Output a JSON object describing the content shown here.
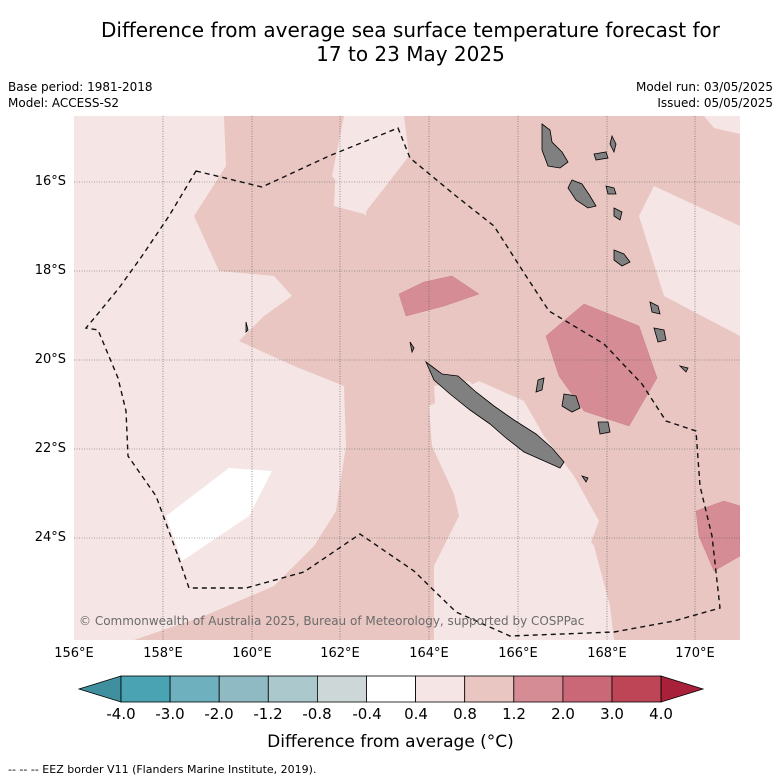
{
  "title_line1": "Difference from average sea surface temperature forecast for",
  "title_line2": "17 to 23 May 2025",
  "base_period": "Base period: 1981-2018",
  "model": "Model: ACCESS-S2",
  "model_run": "Model run: 03/05/2025",
  "issued": "Issued: 05/05/2025",
  "lat_ticks": [
    "16°S",
    "18°S",
    "20°S",
    "22°S",
    "24°S"
  ],
  "lon_ticks": [
    "156°E",
    "158°E",
    "160°E",
    "162°E",
    "164°E",
    "166°E",
    "168°E",
    "170°E"
  ],
  "copyright": "© Commonwealth of Australia 2025, Bureau of Meteorology, supported by COSPPac",
  "colorbar": {
    "labels": [
      "-4.0",
      "-3.0",
      "-2.0",
      "-1.2",
      "-0.8",
      "-0.4",
      "0.4",
      "0.8",
      "1.2",
      "2.0",
      "3.0",
      "4.0"
    ],
    "colors": [
      "#4aa3b3",
      "#6eb0bd",
      "#8fbac4",
      "#abc9cc",
      "#ced7d8",
      "#ffffff",
      "#f5e6e5",
      "#e9c6c2",
      "#d68c95",
      "#cb6877",
      "#bd4556"
    ],
    "under_color": "#3f8f9e",
    "over_color": "#a8203a",
    "title": "Difference from average (°C)"
  },
  "footnote": "-- -- -- EEZ border V11 (Flanders Marine Institute, 2019).",
  "colors": {
    "band_0.4_0.8": "#f5e6e5",
    "band_0.8_1.2": "#e9c6c2",
    "band_1.2_2.0": "#d68c95",
    "band_-0.4_0.4": "#ffffff",
    "land": "#808080"
  }
}
